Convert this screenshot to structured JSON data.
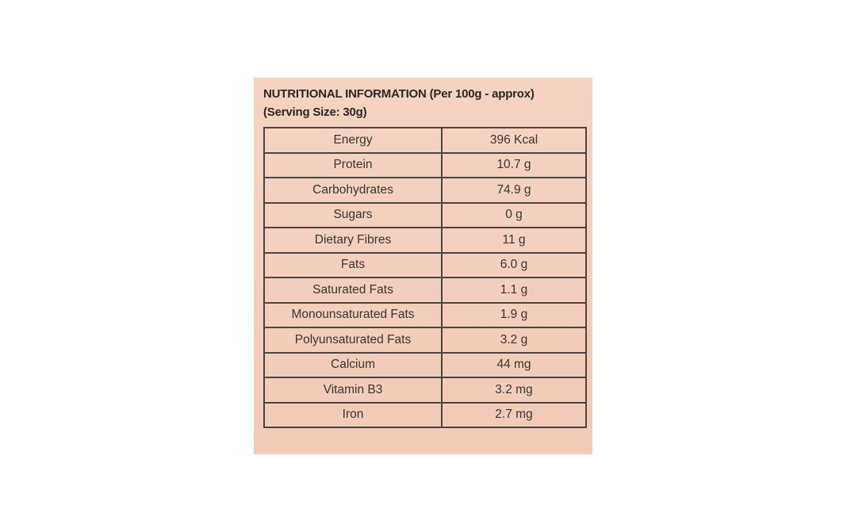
{
  "label": {
    "title": "NUTRITIONAL INFORMATION (Per 100g - approx)",
    "subtitle": "(Serving Size: 30g)",
    "background_color": "#f5d1bf",
    "border_color": "#4a4543"
  },
  "rows": [
    {
      "nutrient": "Energy",
      "value": "396 Kcal"
    },
    {
      "nutrient": "Protein",
      "value": "10.7 g"
    },
    {
      "nutrient": "Carbohydrates",
      "value": "74.9 g"
    },
    {
      "nutrient": "Sugars",
      "value": "0 g"
    },
    {
      "nutrient": "Dietary Fibres",
      "value": "11 g"
    },
    {
      "nutrient": "Fats",
      "value": "6.0 g"
    },
    {
      "nutrient": "Saturated Fats",
      "value": "1.1 g"
    },
    {
      "nutrient": "Monounsaturated Fats",
      "value": "1.9 g"
    },
    {
      "nutrient": "Polyunsaturated Fats",
      "value": "3.2 g"
    },
    {
      "nutrient": "Calcium",
      "value": "44 mg"
    },
    {
      "nutrient": "Vitamin B3",
      "value": "3.2 mg"
    },
    {
      "nutrient": "Iron",
      "value": "2.7 mg"
    }
  ]
}
